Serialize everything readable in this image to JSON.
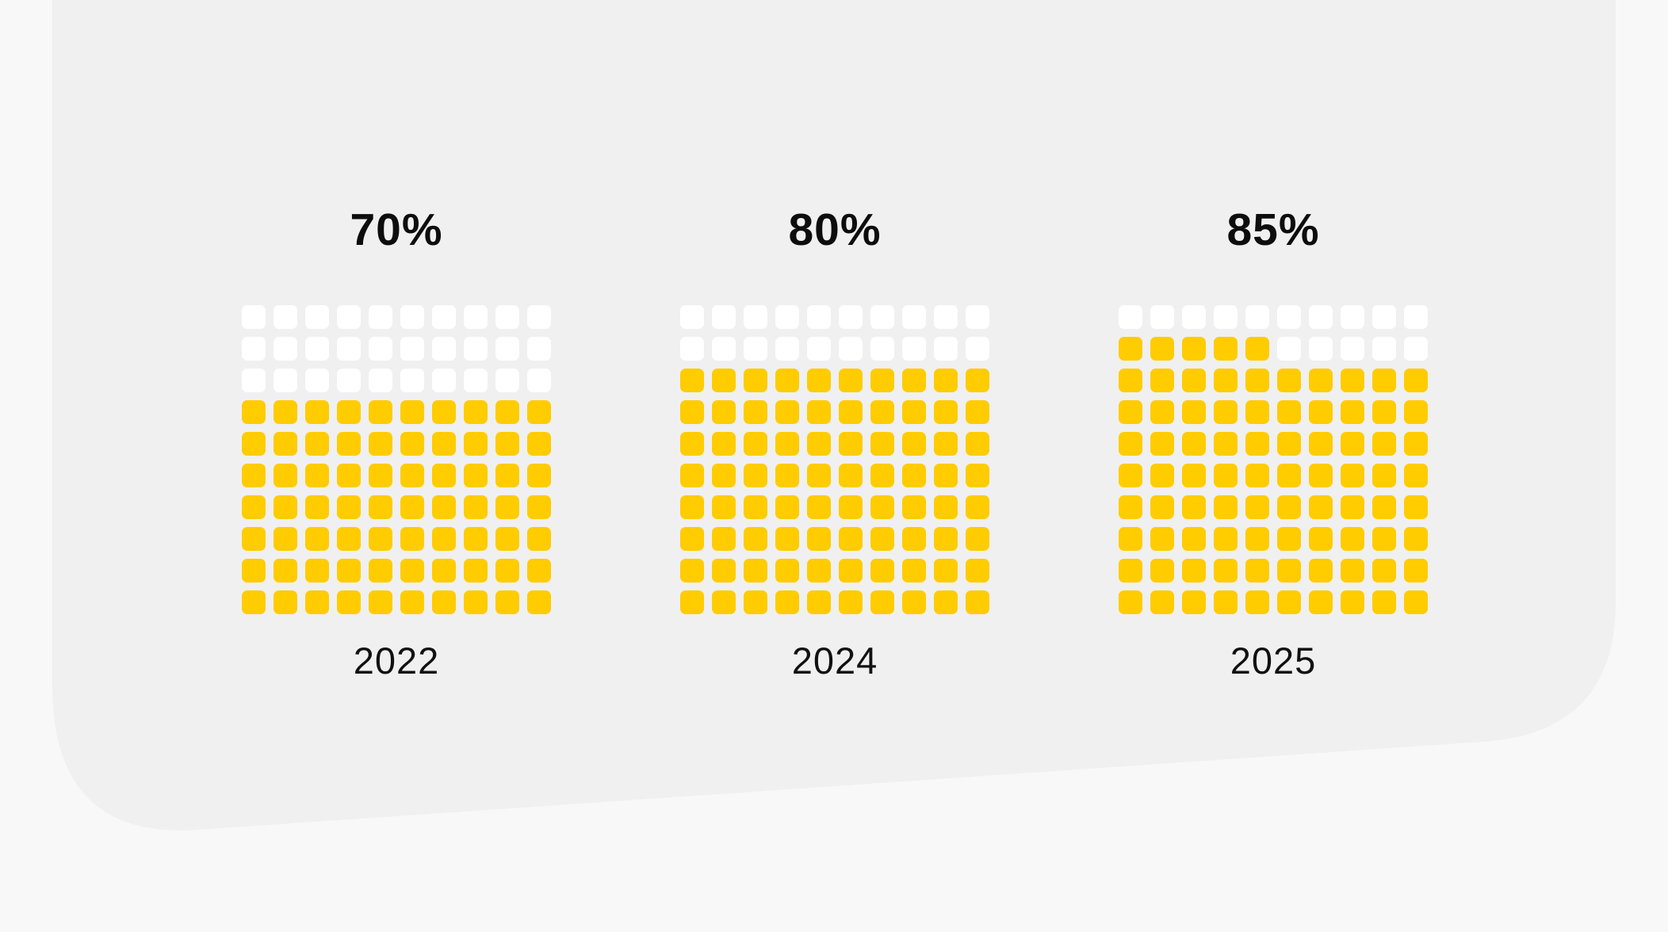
{
  "colors": {
    "page_background": "#f8f8f8",
    "card_background": "#f0f0f0",
    "filled": "#ffcc00",
    "empty": "#ffffff",
    "text": "#0d0d0d"
  },
  "chart_data": {
    "type": "waffle",
    "grid": {
      "rows": 10,
      "columns": 10
    },
    "fill_order": "bottom-to-top, left-to-right",
    "panels": [
      {
        "label": "2022",
        "value_label": "70%",
        "value": 70
      },
      {
        "label": "2024",
        "value_label": "80%",
        "value": 80
      },
      {
        "label": "2025",
        "value_label": "85%",
        "value": 85
      }
    ]
  }
}
